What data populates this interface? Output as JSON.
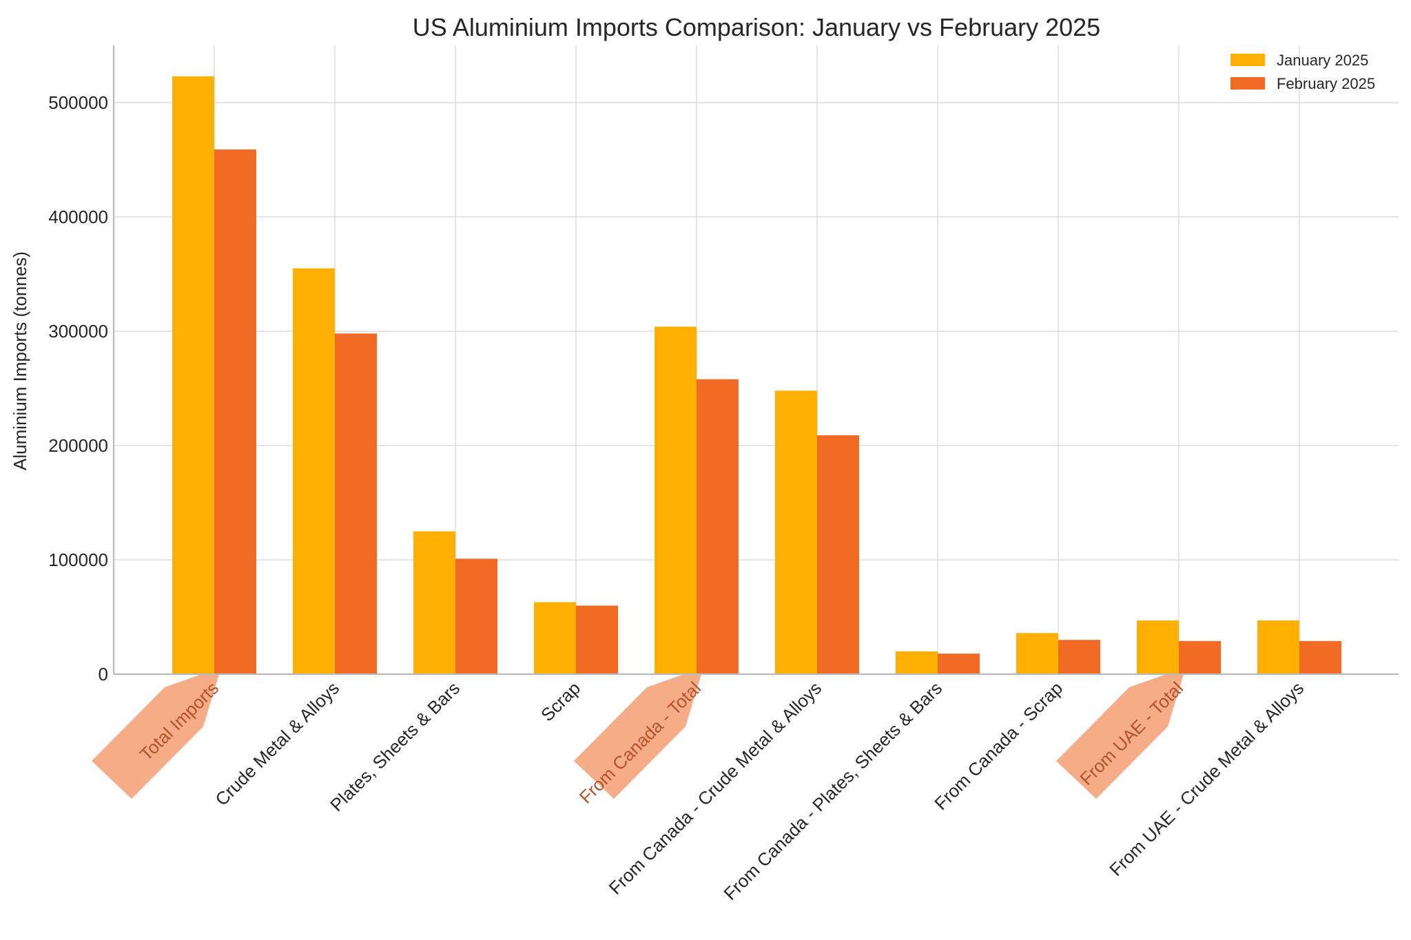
{
  "chart_data": {
    "type": "bar",
    "title": "US Aluminium Imports Comparison: January vs February 2025",
    "xlabel": "",
    "ylabel": "Aluminium Imports (tonnes)",
    "ylim": [
      0,
      550000
    ],
    "yticks": [
      0,
      100000,
      200000,
      300000,
      400000,
      500000
    ],
    "grid": true,
    "legend_position": "top-right",
    "categories": [
      "Total Imports",
      "Crude Metal & Alloys",
      "Plates, Sheets & Bars",
      "Scrap",
      "From Canada - Total",
      "From Canada - Crude Metal & Alloys",
      "From Canada - Plates, Sheets & Bars",
      "From Canada - Scrap",
      "From UAE - Total",
      "From UAE - Crude Metal & Alloys"
    ],
    "highlighted_categories": [
      "Total Imports",
      "From Canada - Total",
      "From UAE - Total"
    ],
    "series": [
      {
        "name": "January 2025",
        "color": "#FFB000",
        "values": [
          523000,
          355000,
          125000,
          63000,
          304000,
          248000,
          20000,
          36000,
          47000,
          47000
        ]
      },
      {
        "name": "February 2025",
        "color": "#F26B24",
        "values": [
          459000,
          298000,
          101000,
          60000,
          258000,
          209000,
          18000,
          30000,
          29000,
          29000
        ]
      }
    ],
    "highlight_color": "#F4A57D"
  }
}
